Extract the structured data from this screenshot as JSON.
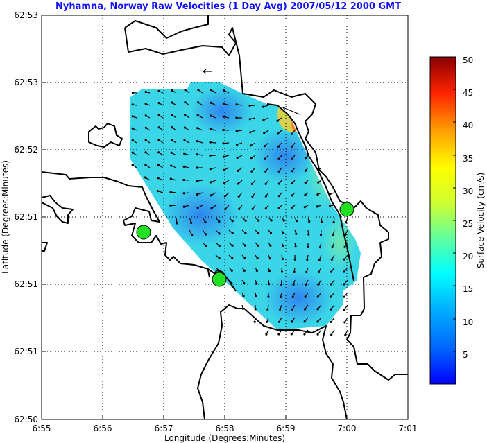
{
  "title": "Nyhamna, Norway Raw Velocities (1 Day Avg) 2007/05/12 2000 GMT",
  "xlabel": "Longitude (Degrees:Minutes)",
  "ylabel": "Latitude (Degrees:Minutes)",
  "x_ticks": [
    "6:55",
    "6:56",
    "6:57",
    "6:58",
    "6:59",
    "7:00",
    "7:01"
  ],
  "y_ticks": [
    "62:53",
    "62:53",
    "62:52",
    "62:51",
    "62:51",
    "62:51",
    "62:50"
  ],
  "colorbar": {
    "label": "Surface Velocity (cm/s)",
    "ticks": [
      "5",
      "10",
      "15",
      "20",
      "25",
      "30",
      "35",
      "40",
      "45",
      "50"
    ],
    "range": [
      0,
      50
    ]
  },
  "colors": {
    "title": "#1010ff",
    "station": "#22e022",
    "land_line": "#000000"
  },
  "map_elements": {
    "stations": [
      "radar-station-west",
      "radar-station-south",
      "radar-station-east"
    ],
    "reference_arrow": "reference-arrow",
    "grid": true,
    "colormap": "jet"
  }
}
